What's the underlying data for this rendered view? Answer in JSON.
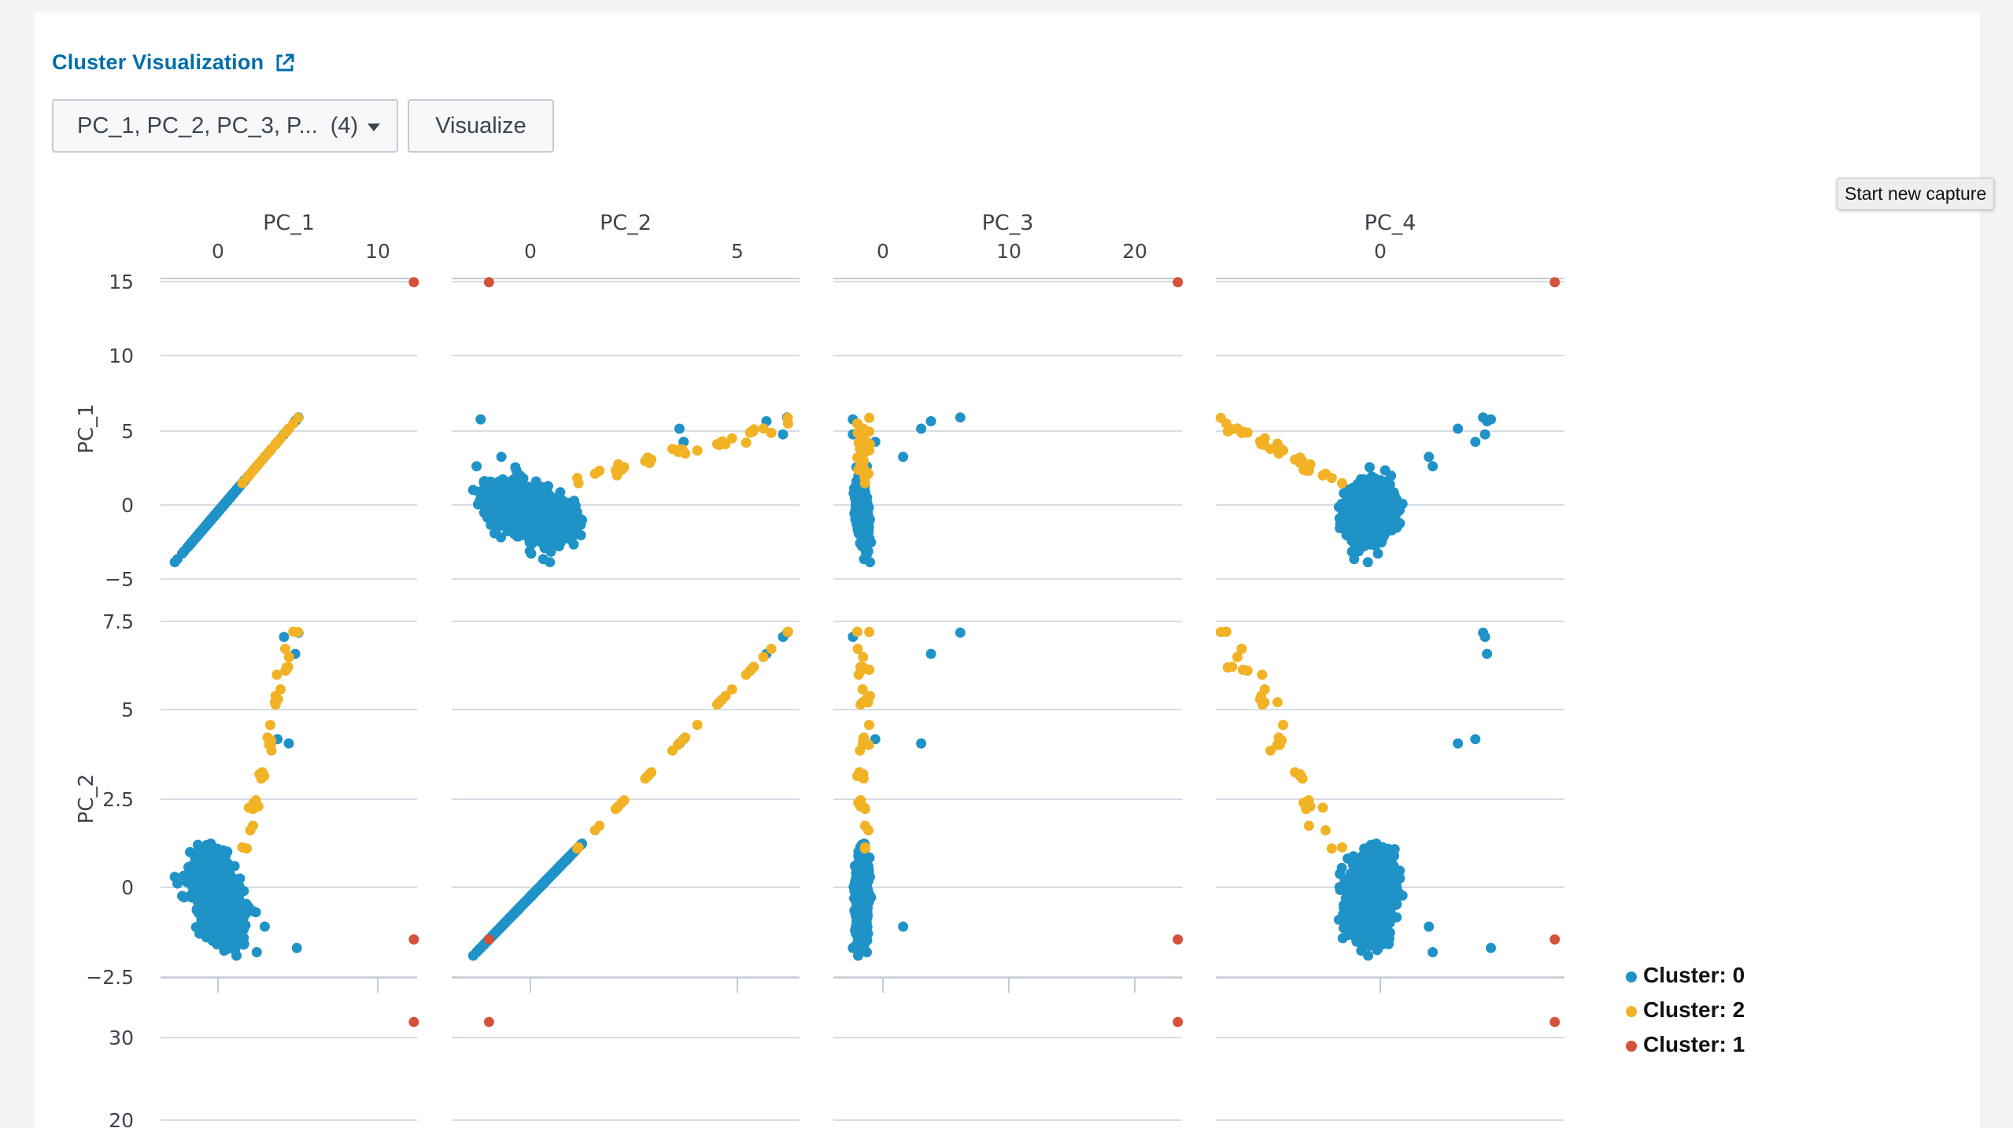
{
  "header": {
    "title": "Cluster Visualization",
    "external_icon": "external-link-icon"
  },
  "controls": {
    "field_select": {
      "label": "PC_1, PC_2, PC_3, P...",
      "count": "(4)"
    },
    "visualize_label": "Visualize"
  },
  "tooltip": "Start new capture",
  "legend": [
    {
      "label": "Cluster: 0",
      "color": "#1f93c8"
    },
    {
      "label": "Cluster: 2",
      "color": "#f1b225"
    },
    {
      "label": "Cluster: 1",
      "color": "#d4513a"
    }
  ],
  "chart_data": {
    "type": "scatter",
    "variables": [
      "PC_1",
      "PC_2",
      "PC_3",
      "PC_4"
    ],
    "top_ticks": {
      "PC_1": [
        "0",
        "10"
      ],
      "PC_2": [
        "0",
        "5"
      ],
      "PC_3": [
        "0",
        "10",
        "20"
      ],
      "PC_4": [
        "0"
      ]
    },
    "left_ticks": {
      "PC_1": [
        "15",
        "10",
        "5",
        "0",
        "−5"
      ],
      "PC_2": [
        "7.5",
        "5",
        "2.5",
        "0",
        "−2.5"
      ],
      "PC_3": [
        "30",
        "20"
      ]
    },
    "ranges": {
      "PC_1": [
        -3.5,
        12.5
      ],
      "PC_2": [
        -1.9,
        6.5
      ],
      "PC_3": [
        -1.5,
        23.5
      ],
      "PC_4": [
        -8,
        10
      ]
    },
    "clusters": [
      {
        "name": "Cluster: 0",
        "color": "#1f93c8"
      },
      {
        "name": "Cluster: 2",
        "color": "#f1b225"
      },
      {
        "name": "Cluster: 1",
        "color": "#d4513a"
      }
    ],
    "outlier_cluster_1": {
      "PC_1": 12.3,
      "PC_2": -1.0,
      "PC_3": 23.2,
      "PC_4": 9.5
    },
    "cluster_0_summary": {
      "PC_1": [
        -3.3,
        5.1
      ],
      "PC_2": [
        -1.8,
        6.2
      ],
      "PC_3": [
        -0.1,
        7.6
      ],
      "PC_4": [
        -2.5,
        6
      ]
    },
    "cluster_2_summary": {
      "PC_1": [
        1.5,
        4.9
      ],
      "PC_2": [
        0.9,
        6.4
      ],
      "PC_3": [
        0.2,
        1.2
      ],
      "PC_4": [
        -7.7,
        -1.5
      ]
    },
    "grid": true,
    "legend_position": "bottom-right"
  }
}
